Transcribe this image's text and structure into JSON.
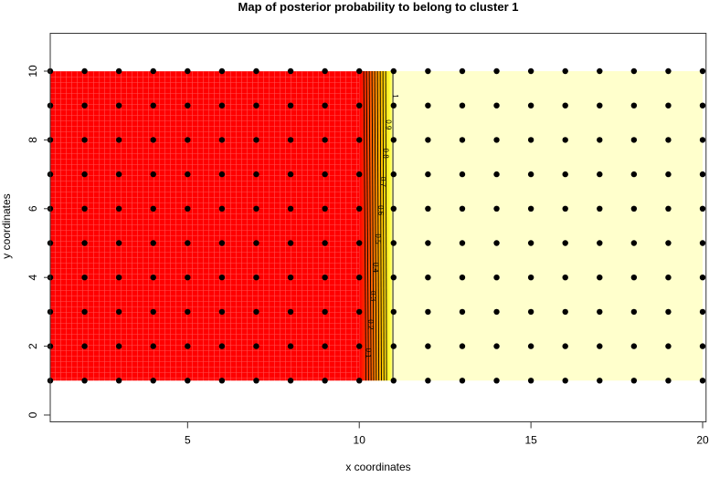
{
  "chart_data": {
    "type": "heatmap",
    "title": "Map of posterior probability to belong to cluster  1",
    "xlabel": "x coordinates",
    "ylabel": "y coordinates",
    "xlim": [
      1,
      20
    ],
    "ylim": [
      0,
      11
    ],
    "x_ticks": [
      "5",
      "10",
      "15",
      "20"
    ],
    "y_ticks": [
      "0",
      "2",
      "4",
      "6",
      "8",
      "10"
    ],
    "points": {
      "x": [
        1,
        2,
        3,
        4,
        5,
        6,
        7,
        8,
        9,
        10,
        11,
        12,
        13,
        14,
        15,
        16,
        17,
        18,
        19,
        20
      ],
      "y": [
        1,
        2,
        3,
        4,
        5,
        6,
        7,
        8,
        9,
        10
      ]
    },
    "probability_by_column": {
      "x_le_10": 0,
      "x_ge_11": 1
    },
    "contour_levels": [
      "0.1",
      "0.2",
      "0.3",
      "0.4",
      "0.5",
      "0.6",
      "0.7",
      "0.8",
      "0.9",
      "1"
    ],
    "color_scale": {
      "low": "#ff0000",
      "mid": "#ff8000",
      "high_mid": "#ffff00",
      "high": "#ffffcc"
    },
    "grid": false
  }
}
